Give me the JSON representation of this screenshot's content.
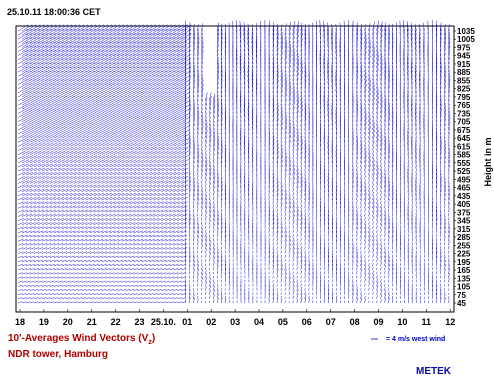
{
  "header": {
    "timestamp": "25.10.11 18:00:36  CET"
  },
  "footer": {
    "title_main": "10'-Averages Wind Vectors (V",
    "title_sub": "z",
    "title_close": ")",
    "subtitle": "NDR tower, Hamburg",
    "brand": "METEK"
  },
  "colors": {
    "vectors": "#0000cc",
    "title": "#b00000",
    "brand": "#0a0aa0"
  },
  "chart_data": {
    "type": "vector-field",
    "ylabel": "Height in m",
    "y_ticks": [
      45,
      75,
      105,
      135,
      165,
      195,
      225,
      255,
      285,
      315,
      345,
      375,
      405,
      435,
      465,
      495,
      525,
      555,
      585,
      615,
      645,
      675,
      705,
      735,
      765,
      795,
      825,
      855,
      885,
      915,
      945,
      975,
      1005,
      1035
    ],
    "ylim": [
      45,
      1035
    ],
    "x_ticks": [
      "18",
      "19",
      "20",
      "21",
      "22",
      "23",
      "25.10.",
      "01",
      "02",
      "03",
      "04",
      "05",
      "06",
      "07",
      "08",
      "09",
      "10",
      "11",
      "12"
    ],
    "columns_per_hour": 6,
    "reference_vector": "= 4 m/s west wind",
    "grid": false,
    "legend": "bottom-right"
  }
}
